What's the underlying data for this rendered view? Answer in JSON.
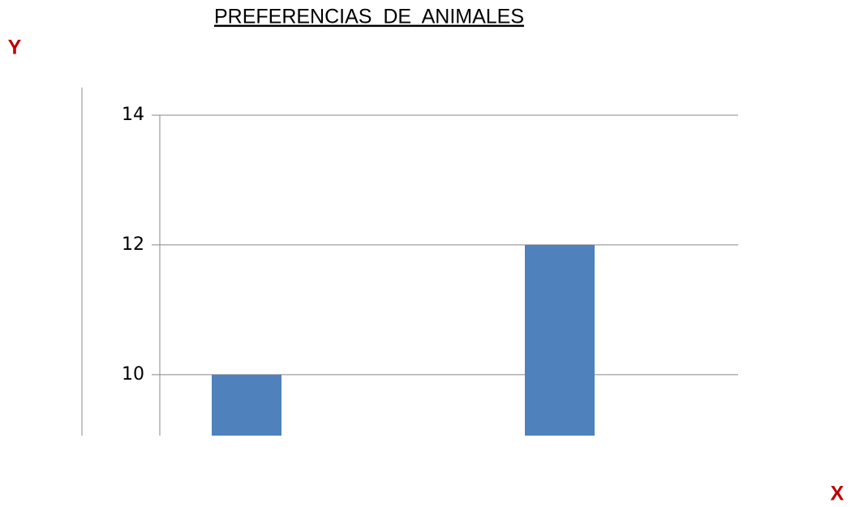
{
  "chart_data": {
    "type": "bar",
    "title": "PREFERENCIAS  DE  ANIMALES",
    "y_label": "Y",
    "x_label": "X",
    "categories": [
      null,
      null
    ],
    "values": [
      10,
      12
    ],
    "color": "#4f81bd",
    "ylim": [
      9.06,
      14
    ],
    "yticks": [
      10,
      12,
      14
    ],
    "grid": true
  }
}
